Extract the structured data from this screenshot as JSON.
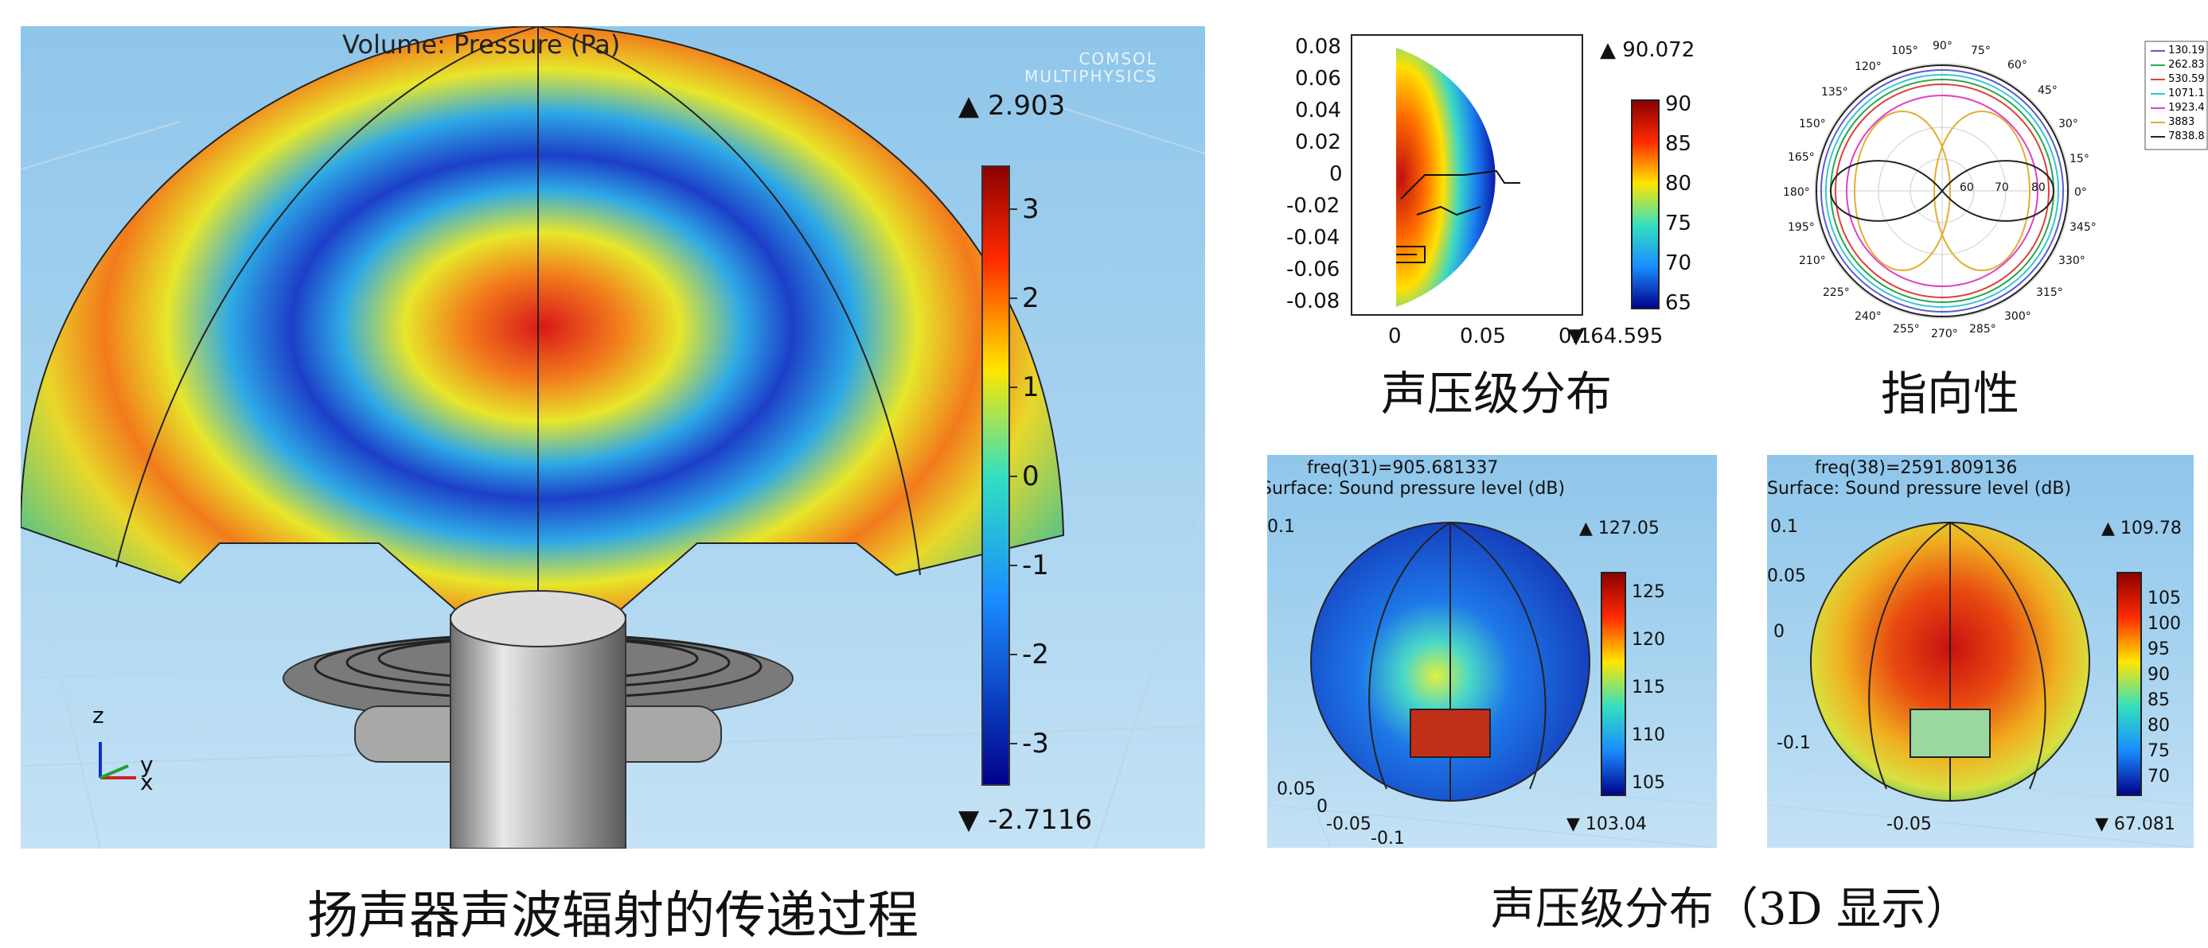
{
  "main_view": {
    "title": "Volume: Pressure (Pa)",
    "watermark": "COMSOL MULTIPHYSICS",
    "max": "▲ 2.903",
    "min": "▼ -2.7116",
    "colorbar_ticks": [
      "3",
      "2",
      "1",
      "0",
      "-1",
      "-2",
      "-3"
    ],
    "axes": {
      "z": "z",
      "y": "y",
      "x": "x"
    }
  },
  "spl_2d": {
    "max": "▲ 90.072",
    "min": "▼ 64.595",
    "y_ticks": [
      "0.08",
      "0.06",
      "0.04",
      "0.02",
      "0",
      "-0.02",
      "-0.04",
      "-0.06",
      "-0.08"
    ],
    "x_ticks": [
      "0",
      "0.05",
      "0.1"
    ],
    "colorbar_ticks": [
      "90",
      "85",
      "80",
      "75",
      "70",
      "65"
    ]
  },
  "directivity": {
    "angles": [
      "90°",
      "75°",
      "60°",
      "45°",
      "30°",
      "15°",
      "0°",
      "345°",
      "330°",
      "315°",
      "300°",
      "285°",
      "270°",
      "255°",
      "240°",
      "225°",
      "210°",
      "195°",
      "180°",
      "165°",
      "150°",
      "135°",
      "120°",
      "105°"
    ],
    "radial_labels": [
      "60",
      "70",
      "80"
    ],
    "legend": [
      "130.19",
      "262.83",
      "530.59",
      "1071.1",
      "1923.4",
      "3883",
      "7838.8"
    ],
    "legend_colors": [
      "#5b5bd6",
      "#2aa84a",
      "#e04040",
      "#35c6d6",
      "#e040c8",
      "#e0b030",
      "#222222"
    ]
  },
  "view3d_a": {
    "freq": "freq(31)=905.681337",
    "title": "Surface: Sound pressure level (dB)",
    "max": "▲ 127.05",
    "min": "▼ 103.04",
    "colorbar_ticks": [
      "125",
      "120",
      "115",
      "110",
      "105"
    ],
    "axis_labels": [
      "0.1",
      "0.05",
      "0",
      "-0.05",
      "-0.1"
    ]
  },
  "view3d_b": {
    "freq": "freq(38)=2591.809136",
    "title": "Surface: Sound pressure level (dB)",
    "max": "▲ 109.78",
    "min": "▼ 67.081",
    "colorbar_ticks": [
      "105",
      "100",
      "95",
      "90",
      "85",
      "80",
      "75",
      "70"
    ],
    "axis_labels": [
      "0.1",
      "0.05",
      "0",
      "-0.05",
      "-0.1"
    ]
  },
  "captions": {
    "main": "扬声器声波辐射的传递过程",
    "spl": "声压级分布",
    "directivity": "指向性",
    "spl3d": "声压级分布（3D 显示）"
  }
}
